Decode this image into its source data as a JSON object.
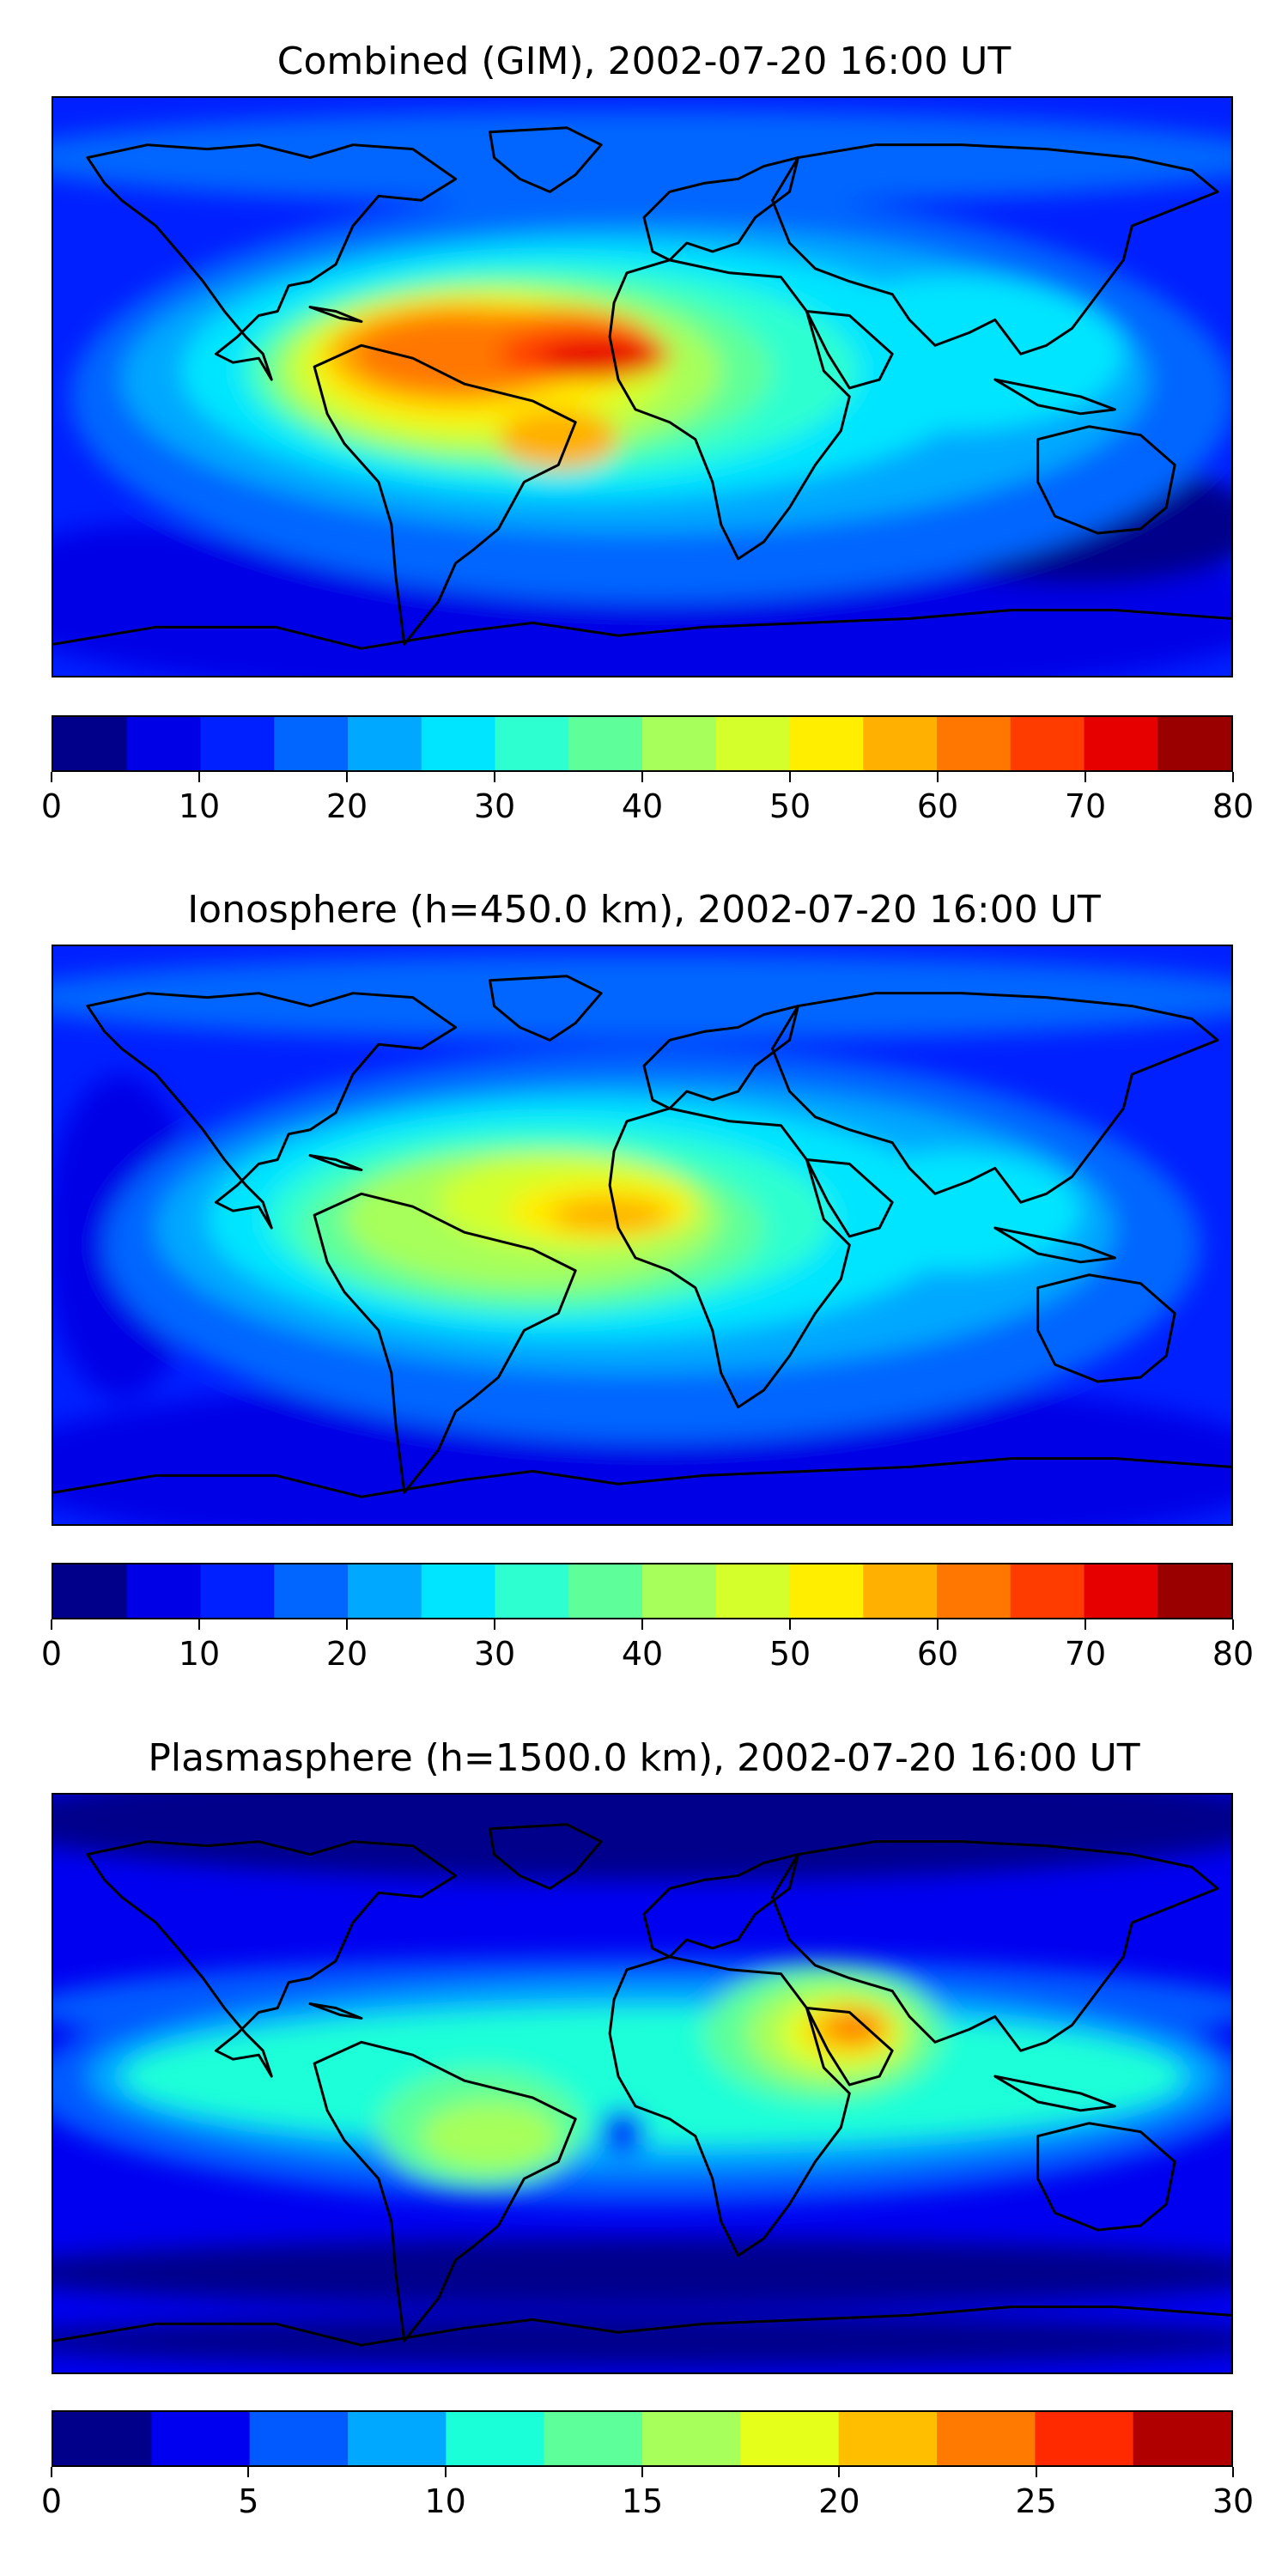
{
  "chart_data": [
    {
      "type": "heatmap",
      "title": "Combined (GIM), 2002-07-20 16:00 UT",
      "colorbar": {
        "levels": [
          0,
          5,
          10,
          15,
          20,
          25,
          30,
          35,
          40,
          45,
          50,
          55,
          60,
          65,
          70,
          75,
          80
        ],
        "tick_labels": [
          "0",
          "10",
          "20",
          "30",
          "40",
          "50",
          "60",
          "70",
          "80"
        ],
        "colors": [
          "#00008b",
          "#0000e6",
          "#0020ff",
          "#0066ff",
          "#00a8ff",
          "#00e5ff",
          "#2effd0",
          "#5eff9a",
          "#a6ff5a",
          "#d4ff2a",
          "#ffee00",
          "#ffb000",
          "#ff7700",
          "#ff3c00",
          "#e60000",
          "#9a0000"
        ]
      },
      "features": [
        {
          "name": "peak",
          "region": "tropical Atlantic / northern South America",
          "value": 72
        },
        {
          "name": "secondary",
          "region": "central South America",
          "value": 55
        }
      ]
    },
    {
      "type": "heatmap",
      "title": "Ionosphere  (h=450.0 km), 2002-07-20 16:00 UT",
      "colorbar": {
        "levels": [
          0,
          5,
          10,
          15,
          20,
          25,
          30,
          35,
          40,
          45,
          50,
          55,
          60,
          65,
          70,
          75,
          80
        ],
        "tick_labels": [
          "0",
          "10",
          "20",
          "30",
          "40",
          "50",
          "60",
          "70",
          "80"
        ],
        "colors": [
          "#00008b",
          "#0000e6",
          "#0020ff",
          "#0066ff",
          "#00a8ff",
          "#00e5ff",
          "#2effd0",
          "#5eff9a",
          "#a6ff5a",
          "#d4ff2a",
          "#ffee00",
          "#ffb000",
          "#ff7700",
          "#ff3c00",
          "#e60000",
          "#9a0000"
        ]
      },
      "features": [
        {
          "name": "peak",
          "region": "West Africa / tropical Atlantic",
          "value": 57
        }
      ]
    },
    {
      "type": "heatmap",
      "title": "Plasmasphere (h=1500.0 km), 2002-07-20 16:00 UT",
      "colorbar": {
        "levels": [
          0,
          2.5,
          5,
          7.5,
          10,
          12.5,
          15,
          17.5,
          20,
          22.5,
          25,
          27.5,
          30
        ],
        "tick_labels": [
          "0",
          "5",
          "10",
          "15",
          "20",
          "25",
          "30"
        ],
        "colors": [
          "#00008b",
          "#0000f0",
          "#005aff",
          "#00a8ff",
          "#1affd8",
          "#5cff9a",
          "#a6ff5a",
          "#e6ff1a",
          "#ffbe00",
          "#ff7a00",
          "#ff2a00",
          "#b00000"
        ]
      },
      "features": [
        {
          "name": "peak",
          "region": "Arabian Peninsula / Horn of Africa",
          "value": 24
        },
        {
          "name": "secondary",
          "region": "central South America",
          "value": 18
        }
      ]
    }
  ]
}
